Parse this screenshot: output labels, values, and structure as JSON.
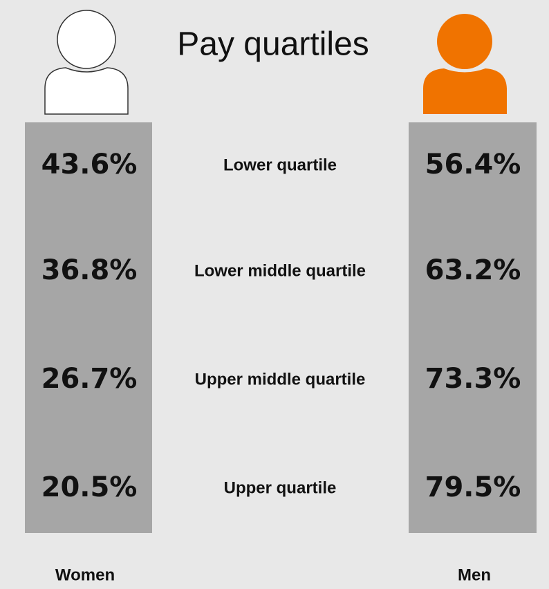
{
  "title": "Pay quartiles",
  "groups": [
    "Women",
    "Men"
  ],
  "rows": [
    {
      "label": "Lower quartile",
      "women": "43.6%",
      "men": "56.4%"
    },
    {
      "label": "Lower middle quartile",
      "women": "36.8%",
      "men": "63.2%"
    },
    {
      "label": "Upper middle quartile",
      "women": "26.7%",
      "men": "73.3%"
    },
    {
      "label": "Upper quartile",
      "women": "20.5%",
      "men": "79.5%"
    }
  ]
}
